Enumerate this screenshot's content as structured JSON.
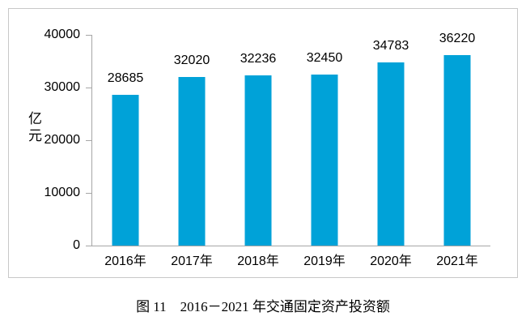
{
  "figure": {
    "caption": "图 11　2016－2021 年交通固定资产投资额"
  },
  "chart_data": {
    "type": "bar",
    "title": "",
    "categories": [
      "2016年",
      "2017年",
      "2018年",
      "2019年",
      "2020年",
      "2021年"
    ],
    "values": [
      28685,
      32020,
      32236,
      32450,
      34783,
      36220
    ],
    "xlabel": "",
    "ylabel": "亿元",
    "ylim": [
      0,
      40000
    ],
    "yticks": [
      0,
      10000,
      20000,
      30000,
      40000
    ],
    "grid": false,
    "legend_position": "none",
    "data_labels_shown": true,
    "bar_color": "#00a2d8",
    "axis_color": "#a6a6a6",
    "text_color": "#000000",
    "frame_border_color": "#c8c8c8"
  }
}
